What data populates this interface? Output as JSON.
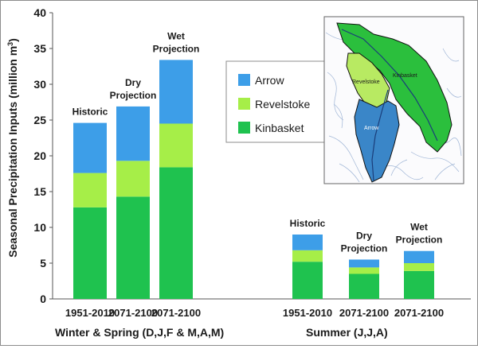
{
  "chart_data": {
    "type": "bar",
    "stacked": true,
    "ylabel": "Seasonal Precipitation Inputs (million m",
    "ylabel_superscript": "3",
    "ylabel_suffix": ")",
    "ylim": [
      0,
      40
    ],
    "yticks": [
      "0",
      "5",
      "10",
      "15",
      "20",
      "25",
      "30",
      "35",
      "40"
    ],
    "grid": false,
    "legend_placement": "center",
    "colors": {
      "Arrow": "#3d9ee8",
      "Revelstoke": "#a6ee48",
      "Kinbasket": "#1fc24f"
    },
    "legend": [
      "Arrow",
      "Revelstoke",
      "Kinbasket"
    ],
    "groups": [
      {
        "label": "Winter & Spring  (D,J,F & M,A,M)",
        "bars": [
          {
            "x": "1951-2010",
            "annotation": [
              "Historic"
            ],
            "Kinbasket": 12.8,
            "Revelstoke": 4.8,
            "Arrow": 7.0
          },
          {
            "x": "2071-2100",
            "annotation": [
              "Dry",
              "Projection"
            ],
            "Kinbasket": 14.3,
            "Revelstoke": 5.0,
            "Arrow": 7.6
          },
          {
            "x": "2071-2100",
            "annotation": [
              "Wet",
              "Projection"
            ],
            "Kinbasket": 18.4,
            "Revelstoke": 6.1,
            "Arrow": 8.9
          }
        ]
      },
      {
        "label": "Summer  (J,J,A)",
        "bars": [
          {
            "x": "1951-2010",
            "annotation": [
              "Historic"
            ],
            "Kinbasket": 5.2,
            "Revelstoke": 1.6,
            "Arrow": 2.2
          },
          {
            "x": "2071-2100",
            "annotation": [
              "Dry",
              "Projection"
            ],
            "Kinbasket": 3.5,
            "Revelstoke": 0.9,
            "Arrow": 1.1
          },
          {
            "x": "2071-2100",
            "annotation": [
              "Wet",
              "Projection"
            ],
            "Kinbasket": 3.9,
            "Revelstoke": 1.1,
            "Arrow": 1.7
          }
        ]
      }
    ],
    "inset_map_labels": [
      "Revelstoke",
      "Kinbasket",
      "Arrow"
    ]
  }
}
